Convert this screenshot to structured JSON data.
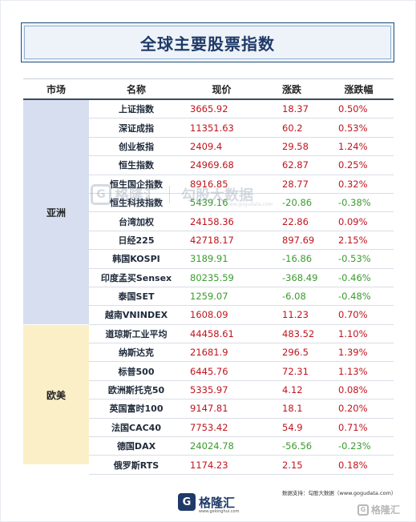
{
  "title": "全球主要股票指数",
  "headers": {
    "region": "市场",
    "name": "名称",
    "price": "现价",
    "change": "涨跌",
    "pct": "涨跌幅"
  },
  "regions": [
    {
      "label": "亚洲",
      "rows": [
        {
          "name": "上证指数",
          "price": "3665.92",
          "change": "18.37",
          "pct": "0.50%",
          "dir": "up"
        },
        {
          "name": "深证成指",
          "price": "11351.63",
          "change": "60.2",
          "pct": "0.53%",
          "dir": "up"
        },
        {
          "name": "创业板指",
          "price": "2409.4",
          "change": "29.58",
          "pct": "1.24%",
          "dir": "up"
        },
        {
          "name": "恒生指数",
          "price": "24969.68",
          "change": "62.87",
          "pct": "0.25%",
          "dir": "up"
        },
        {
          "name": "恒生国企指数",
          "price": "8916.85",
          "change": "28.77",
          "pct": "0.32%",
          "dir": "up"
        },
        {
          "name": "恒生科技指数",
          "price": "5439.16",
          "change": "-20.86",
          "pct": "-0.38%",
          "dir": "down"
        },
        {
          "name": "台湾加权",
          "price": "24158.36",
          "change": "22.86",
          "pct": "0.09%",
          "dir": "up"
        },
        {
          "name": "日经225",
          "price": "42718.17",
          "change": "897.69",
          "pct": "2.15%",
          "dir": "up"
        },
        {
          "name": "韩国KOSPI",
          "price": "3189.91",
          "change": "-16.86",
          "pct": "-0.53%",
          "dir": "down"
        },
        {
          "name": "印度孟买Sensex",
          "price": "80235.59",
          "change": "-368.49",
          "pct": "-0.46%",
          "dir": "down"
        },
        {
          "name": "泰国SET",
          "price": "1259.07",
          "change": "-6.08",
          "pct": "-0.48%",
          "dir": "down"
        },
        {
          "name": "越南VNINDEX",
          "price": "1608.09",
          "change": "11.23",
          "pct": "0.70%",
          "dir": "up"
        }
      ]
    },
    {
      "label": "欧美",
      "rows": [
        {
          "name": "道琼斯工业平均",
          "price": "44458.61",
          "change": "483.52",
          "pct": "1.10%",
          "dir": "up"
        },
        {
          "name": "纳斯达克",
          "price": "21681.9",
          "change": "296.5",
          "pct": "1.39%",
          "dir": "up"
        },
        {
          "name": "标普500",
          "price": "6445.76",
          "change": "72.31",
          "pct": "1.13%",
          "dir": "up"
        },
        {
          "name": "欧洲斯托克50",
          "price": "5335.97",
          "change": "4.12",
          "pct": "0.08%",
          "dir": "up"
        },
        {
          "name": "英国富时100",
          "price": "9147.81",
          "change": "18.1",
          "pct": "0.20%",
          "dir": "up"
        },
        {
          "name": "法国CAC40",
          "price": "7753.42",
          "change": "54.9",
          "pct": "0.71%",
          "dir": "up"
        },
        {
          "name": "德国DAX",
          "price": "24024.78",
          "change": "-56.56",
          "pct": "-0.23%",
          "dir": "down"
        },
        {
          "name": "俄罗斯RTS",
          "price": "1174.23",
          "change": "2.15",
          "pct": "0.18%",
          "dir": "up"
        }
      ]
    }
  ],
  "watermark": {
    "brand": "格隆汇",
    "partner": "勾股大数据",
    "url1": "www.gelonghui.com",
    "url2": "www.gogudata.com"
  },
  "footer": {
    "logo_letter": "G",
    "logo_name": "格隆汇",
    "logo_url": "www.gelonghui.com",
    "source": "数据支持：勾股大数据（www.gogudata.com）",
    "corner": "格隆汇"
  },
  "colors": {
    "up": "#c0141e",
    "down": "#3a9b2e",
    "asia_bg": "#d6def0",
    "eu_bg": "#fbefc8",
    "title": "#1f3a68"
  }
}
